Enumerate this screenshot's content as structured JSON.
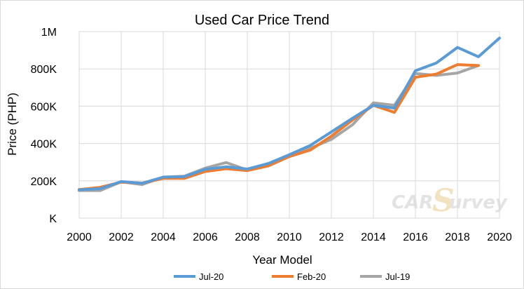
{
  "chart_data": {
    "type": "line",
    "title": "Used Car Price Trend",
    "xlabel": "Year Model",
    "ylabel": "Price (PHP)",
    "xlim": [
      2000,
      2020
    ],
    "ylim": [
      0,
      1000000
    ],
    "x_ticks": [
      2000,
      2002,
      2004,
      2006,
      2008,
      2010,
      2012,
      2014,
      2016,
      2018,
      2020
    ],
    "x_tick_labels": [
      "2000",
      "2002",
      "2004",
      "2006",
      "2008",
      "2010",
      "2012",
      "2014",
      "2016",
      "2018",
      "2020"
    ],
    "y_ticks": [
      0,
      200000,
      400000,
      600000,
      800000,
      1000000
    ],
    "y_tick_labels": [
      "K",
      "200K",
      "400K",
      "600K",
      "800K",
      "1M"
    ],
    "grid": {
      "horizontal": true,
      "vertical": true
    },
    "legend_position": "bottom",
    "x": [
      2000,
      2001,
      2002,
      2003,
      2004,
      2005,
      2006,
      2007,
      2008,
      2009,
      2010,
      2011,
      2012,
      2013,
      2014,
      2015,
      2016,
      2017,
      2018,
      2019,
      2020
    ],
    "series": [
      {
        "name": "Jul-20",
        "color": "#5b9bd5",
        "values": [
          152000,
          158000,
          196000,
          187000,
          220000,
          222000,
          262000,
          275000,
          263000,
          293000,
          340000,
          390000,
          462000,
          535000,
          605000,
          590000,
          790000,
          832000,
          915000,
          865000,
          965000
        ]
      },
      {
        "name": "Feb-20",
        "color": "#ed7d31",
        "values": [
          153000,
          165000,
          193000,
          188000,
          213000,
          213000,
          250000,
          265000,
          255000,
          280000,
          330000,
          365000,
          440000,
          525000,
          605000,
          567000,
          755000,
          772000,
          823000,
          818000,
          null
        ]
      },
      {
        "name": "Jul-19",
        "color": "#a5a5a5",
        "values": [
          148000,
          148000,
          195000,
          180000,
          220000,
          225000,
          268000,
          298000,
          258000,
          285000,
          332000,
          375000,
          422000,
          500000,
          618000,
          605000,
          775000,
          765000,
          778000,
          818000,
          null
        ]
      }
    ]
  },
  "watermark": {
    "text_main": "CAR",
    "text_s": "S",
    "text_tail": "urvey"
  }
}
